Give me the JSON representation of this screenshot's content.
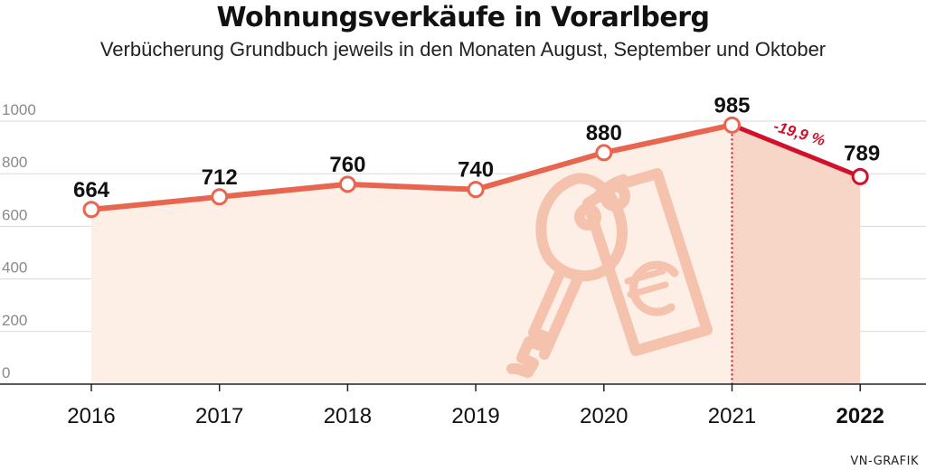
{
  "header": {
    "title": "Wohnungsverkäufe in Vorarlberg",
    "subtitle": "Verbücherung Grundbuch jeweils in den Monaten August, September und Oktober"
  },
  "credit": "VN-GRAFIK",
  "colors": {
    "line": "#e8664f",
    "highlight": "#d0112b",
    "fill": "#fdeee6",
    "fill_highlight": "#f8d6c7",
    "grid": "#d9d9d9",
    "icon": "#f4c2ad"
  },
  "decoration": {
    "icon": "key-price-tag-euro-icon"
  },
  "chart_data": {
    "type": "line",
    "title": "Wohnungsverkäufe in Vorarlberg",
    "subtitle": "Verbücherung Grundbuch jeweils in den Monaten August, September und Oktober",
    "xlabel": "",
    "ylabel": "",
    "x": [
      "2016",
      "2017",
      "2018",
      "2019",
      "2020",
      "2021",
      "2022"
    ],
    "values": [
      664,
      712,
      760,
      740,
      880,
      985,
      789
    ],
    "data_labels": [
      "664",
      "712",
      "760",
      "740",
      "880",
      "985",
      "789"
    ],
    "yticks": [
      0,
      200,
      400,
      600,
      800,
      1000
    ],
    "ytick_labels": [
      "0",
      "200",
      "400",
      "600",
      "800",
      "1000"
    ],
    "ylim": [
      0,
      1050
    ],
    "grid": true,
    "highlight": {
      "from": "2021",
      "to": "2022",
      "label": "-19,9 %"
    }
  }
}
